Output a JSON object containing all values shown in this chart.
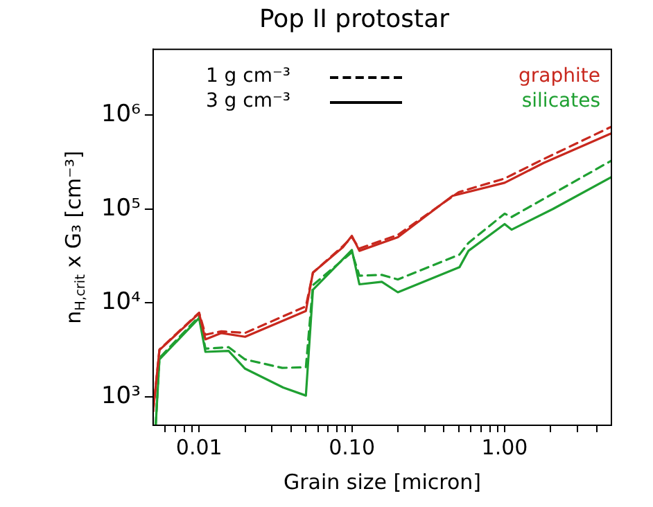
{
  "chart_data": {
    "type": "line",
    "title": "Pop II protostar",
    "xlabel": "Grain size [micron]",
    "ylabel": "n$_{H,crit}$ x G₃ [cm⁻³]",
    "log": "xy",
    "grid": false,
    "legend": "top right",
    "marker": "none",
    "xlim": [
      0.005,
      5
    ],
    "ylim": [
      500,
      5000000
    ],
    "xticks": [
      {
        "value": 0.006,
        "label": null
      },
      {
        "value": 0.007,
        "label": null
      },
      {
        "value": 0.008,
        "label": null
      },
      {
        "value": 0.009,
        "label": null
      },
      {
        "value": 0.01,
        "label": "0.01"
      },
      {
        "value": 0.02,
        "label": null
      },
      {
        "value": 0.03,
        "label": null
      },
      {
        "value": 0.04,
        "label": null
      },
      {
        "value": 0.05,
        "label": null
      },
      {
        "value": 0.06,
        "label": null
      },
      {
        "value": 0.07,
        "label": null
      },
      {
        "value": 0.08,
        "label": null
      },
      {
        "value": 0.09,
        "label": null
      },
      {
        "value": 0.1,
        "label": "0.10"
      },
      {
        "value": 0.2,
        "label": null
      },
      {
        "value": 0.3,
        "label": null
      },
      {
        "value": 0.4,
        "label": null
      },
      {
        "value": 0.5,
        "label": null
      },
      {
        "value": 0.6,
        "label": null
      },
      {
        "value": 0.7,
        "label": null
      },
      {
        "value": 0.8,
        "label": null
      },
      {
        "value": 0.9,
        "label": null
      },
      {
        "value": 1,
        "label": "1.00"
      },
      {
        "value": 2,
        "label": null
      },
      {
        "value": 3,
        "label": null
      },
      {
        "value": 4,
        "label": null
      }
    ],
    "yticks": [
      {
        "value": 1000,
        "label": "10³"
      },
      {
        "value": 10000,
        "label": "10⁴"
      },
      {
        "value": 100000,
        "label": "10⁵"
      },
      {
        "value": 1000000,
        "label": "10⁶"
      }
    ],
    "annotations": [
      "1 g cm⁻³",
      "3 g cm⁻³"
    ],
    "series": [
      {
        "color": "#c8281e",
        "line_style": "dashed",
        "x": [
          0.005,
          0.0055,
          0.01,
          0.011,
          0.014,
          0.02,
          0.05,
          0.0556,
          0.087,
          0.1,
          0.112,
          0.2,
          0.5,
          1,
          1.8,
          5
        ],
        "values": [
          700,
          3200,
          7900,
          4600,
          5000,
          4800,
          9200,
          21000,
          40000,
          50000,
          38000,
          53000,
          151000,
          211000,
          340000,
          750000
        ]
      },
      {
        "name": "graphite",
        "color": "#c8281e",
        "line_style": "solid",
        "x": [
          0.005,
          0.0055,
          0.01,
          0.011,
          0.014,
          0.02,
          0.05,
          0.0556,
          0.087,
          0.1,
          0.112,
          0.2,
          0.456,
          1,
          1.8,
          5
        ],
        "values": [
          700,
          3160,
          7760,
          4100,
          4790,
          4370,
          8220,
          21100,
          38900,
          51900,
          35900,
          50100,
          138000,
          190000,
          309000,
          638000
        ]
      },
      {
        "color": "#1fa032",
        "line_style": "dashed",
        "x": [
          0.0052,
          0.0055,
          0.01,
          0.011,
          0.0156,
          0.02,
          0.035,
          0.05,
          0.0556,
          0.1,
          0.112,
          0.157,
          0.2,
          0.506,
          0.58,
          1,
          1.11,
          5
        ],
        "values": [
          500,
          2600,
          7200,
          3270,
          3390,
          2510,
          2040,
          2070,
          15500,
          34700,
          19500,
          19900,
          17800,
          32700,
          43600,
          89100,
          82200,
          327000
        ]
      },
      {
        "name": "silicates",
        "color": "#1fa032",
        "line_style": "solid",
        "x": [
          0.0052,
          0.0055,
          0.01,
          0.011,
          0.0156,
          0.02,
          0.0355,
          0.05,
          0.0556,
          0.1,
          0.112,
          0.157,
          0.2,
          0.506,
          0.58,
          1,
          1.11,
          2.07,
          5
        ],
        "values": [
          500,
          2510,
          6920,
          3020,
          3090,
          2000,
          1260,
          1035,
          13800,
          36700,
          15800,
          16800,
          13000,
          24000,
          35900,
          69200,
          60300,
          100000,
          219000
        ]
      }
    ]
  }
}
